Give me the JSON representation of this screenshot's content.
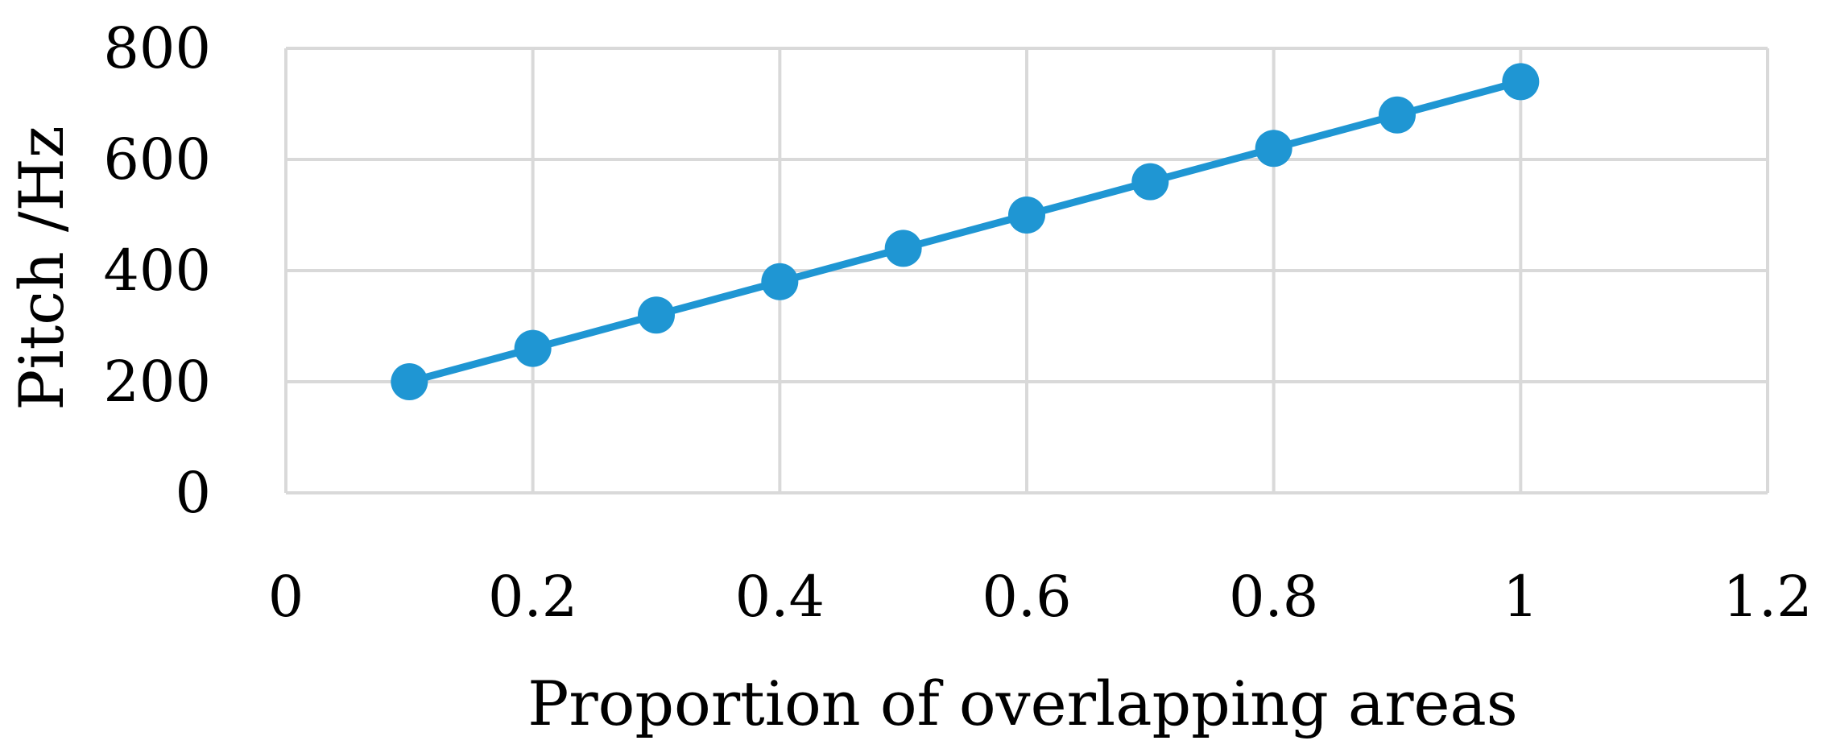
{
  "chart_data": {
    "type": "scatter",
    "title": "",
    "xlabel": "Proportion of overlapping areas",
    "ylabel": "Pitch /Hz",
    "xlim": [
      0,
      1.2
    ],
    "ylim": [
      0,
      800
    ],
    "xticks": [
      "0",
      "0.2",
      "0.4",
      "0.6",
      "0.8",
      "1",
      "1.2"
    ],
    "yticks": [
      "0",
      "200",
      "400",
      "600",
      "800"
    ],
    "grid": true,
    "legend": "none",
    "line_color": "#1f96d3",
    "grid_color": "#d9d9d9",
    "series": [
      {
        "x": [
          0.1,
          0.2,
          0.3,
          0.4,
          0.5,
          0.6,
          0.7,
          0.8,
          0.9,
          1.0
        ],
        "y": [
          200,
          260,
          320,
          380,
          440,
          500,
          560,
          620,
          680,
          740
        ]
      }
    ]
  }
}
